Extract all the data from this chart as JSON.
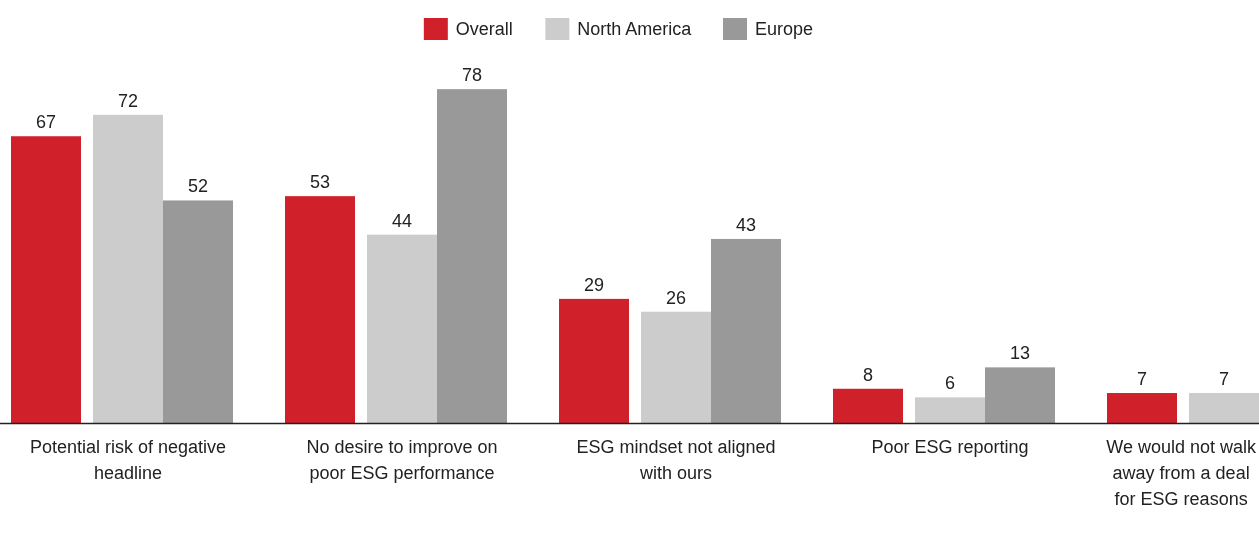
{
  "chart_data": {
    "type": "bar",
    "categories": [
      "Potential risk of negative headline",
      "No desire to improve on poor ESG performance",
      "ESG mindset not aligned with ours",
      "Poor ESG reporting",
      "We would not walk away from a deal for ESG reasons"
    ],
    "series": [
      {
        "name": "Overall",
        "color": "#d0202a",
        "values": [
          67,
          53,
          29,
          8,
          7
        ]
      },
      {
        "name": "North America",
        "color": "#cccccc",
        "values": [
          72,
          44,
          26,
          6,
          7
        ]
      },
      {
        "name": "Europe",
        "color": "#999999",
        "values": [
          52,
          78,
          43,
          13,
          null
        ]
      }
    ],
    "data_labels": true,
    "legend": "top"
  }
}
